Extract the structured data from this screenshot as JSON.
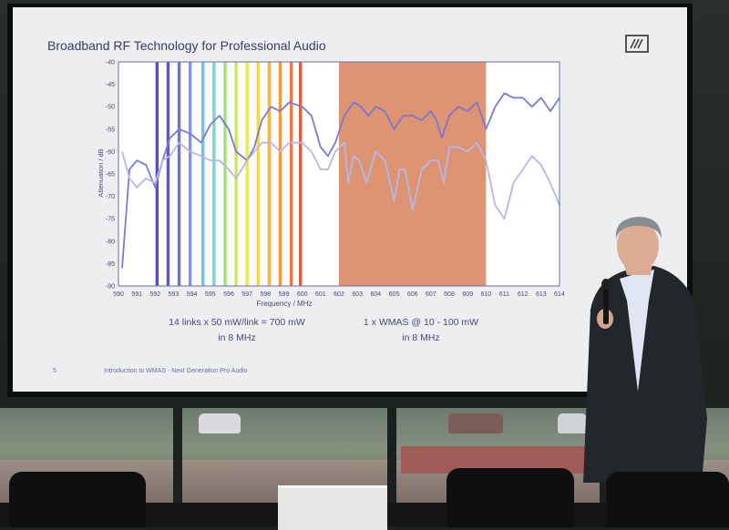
{
  "slide": {
    "title": "Broadband RF Technology for Professional Audio",
    "footer_page": "5",
    "footer_text": "Introduction to WMAS - Next Generation Pro Audio",
    "caption_left_1": "14 links x 50 mW/link = 700 mW",
    "caption_left_2": "in 8 MHz",
    "caption_right_1": "1 x WMAS @ 10 - 100 mW",
    "caption_right_2": "in 8 MHz"
  },
  "colors": {
    "band_fill": "#dc8e6b",
    "trace_main": "#7a79d2",
    "trace_light": "#b5b7e6"
  },
  "chart_data": {
    "type": "line",
    "xlabel": "Frequency / MHz",
    "ylabel": "Attenuation / dB",
    "xlim": [
      590,
      614
    ],
    "ylim": [
      -90,
      -40
    ],
    "x_ticks": [
      "590",
      "591",
      "592",
      "593",
      "594",
      "595",
      "596",
      "597",
      "598",
      "599",
      "600",
      "601",
      "602",
      "603",
      "604",
      "605",
      "606",
      "607",
      "608",
      "609",
      "610",
      "611",
      "612",
      "613",
      "614"
    ],
    "y_ticks": [
      "-40",
      "-45",
      "-50",
      "-55",
      "-60",
      "-65",
      "-70",
      "-75",
      "-80",
      "-85",
      "-90"
    ],
    "wmas_band": [
      602,
      610
    ],
    "carriers": [
      {
        "x": 592.1,
        "color": "#5a4fc7"
      },
      {
        "x": 592.7,
        "color": "#5c55d6"
      },
      {
        "x": 593.3,
        "color": "#6a74e0"
      },
      {
        "x": 593.9,
        "color": "#7c95e8"
      },
      {
        "x": 594.6,
        "color": "#6fc4e6"
      },
      {
        "x": 595.2,
        "color": "#78d8c6"
      },
      {
        "x": 595.8,
        "color": "#9ee07e"
      },
      {
        "x": 596.4,
        "color": "#c9e65c"
      },
      {
        "x": 597.0,
        "color": "#e8ea52"
      },
      {
        "x": 597.6,
        "color": "#f2d84a"
      },
      {
        "x": 598.2,
        "color": "#f2b646"
      },
      {
        "x": 598.8,
        "color": "#ef9a45"
      },
      {
        "x": 599.4,
        "color": "#e97b43"
      },
      {
        "x": 599.9,
        "color": "#d8623e"
      }
    ],
    "series": [
      {
        "x": [
          590.2,
          590.6,
          591.0,
          591.5,
          592.0,
          592.4,
          592.8,
          593.3,
          593.9,
          594.5,
          595.0,
          595.5,
          596.0,
          596.4,
          597.0,
          597.4,
          597.8,
          598.3,
          598.8,
          599.3,
          600.0,
          600.5,
          601.0,
          601.4,
          601.8,
          602.3,
          602.8,
          603.2,
          603.6,
          604.0,
          604.5,
          605.0,
          605.5,
          606.0,
          606.5,
          607.0,
          607.3,
          607.6,
          608.0,
          608.5,
          609.0,
          609.5,
          610.0,
          610.5,
          611.0,
          611.5,
          612.0,
          612.5,
          613.0,
          613.5,
          614.0
        ],
        "values": [
          -86,
          -64,
          -62,
          -63,
          -68,
          -62,
          -57,
          -55,
          -56,
          -58,
          -54,
          -52,
          -55,
          -60,
          -62,
          -59,
          -53,
          -50,
          -51,
          -49,
          -50,
          -52,
          -59,
          -61,
          -58,
          -52,
          -49,
          -50,
          -52,
          -50,
          -51,
          -55,
          -52,
          -52,
          -53,
          -51,
          -53,
          -57,
          -52,
          -50,
          -51,
          -49,
          -55,
          -50,
          -47,
          -48,
          -48,
          -50,
          -48,
          -51,
          -48
        ]
      },
      {
        "x": [
          590.2,
          590.6,
          591.0,
          591.5,
          592.0,
          592.4,
          592.8,
          593.3,
          593.9,
          594.5,
          595.0,
          595.5,
          596.0,
          596.4,
          597.0,
          597.4,
          597.8,
          598.3,
          598.8,
          599.3,
          600.0,
          600.5,
          601.0,
          601.4,
          601.8,
          602.3,
          602.5,
          602.8,
          603.1,
          603.5,
          604.0,
          604.5,
          605.0,
          605.3,
          605.6,
          606.0,
          606.5,
          607.0,
          607.4,
          607.7,
          608.0,
          608.5,
          609.0,
          609.5,
          610.0,
          610.5,
          611.0,
          611.5,
          612.0,
          612.5,
          613.0,
          613.5,
          614.0
        ],
        "values": [
          -60,
          -66,
          -68,
          -66,
          -67,
          -62,
          -61,
          -58,
          -60,
          -61,
          -62,
          -62,
          -64,
          -66,
          -62,
          -60,
          -58,
          -58,
          -60,
          -58,
          -58,
          -60,
          -64,
          -64,
          -60,
          -58,
          -67,
          -61,
          -62,
          -67,
          -60,
          -62,
          -71,
          -64,
          -64,
          -73,
          -64,
          -62,
          -62,
          -67,
          -59,
          -59,
          -60,
          -58,
          -62,
          -72,
          -75,
          -67,
          -64,
          -61,
          -63,
          -67,
          -72
        ]
      }
    ]
  }
}
